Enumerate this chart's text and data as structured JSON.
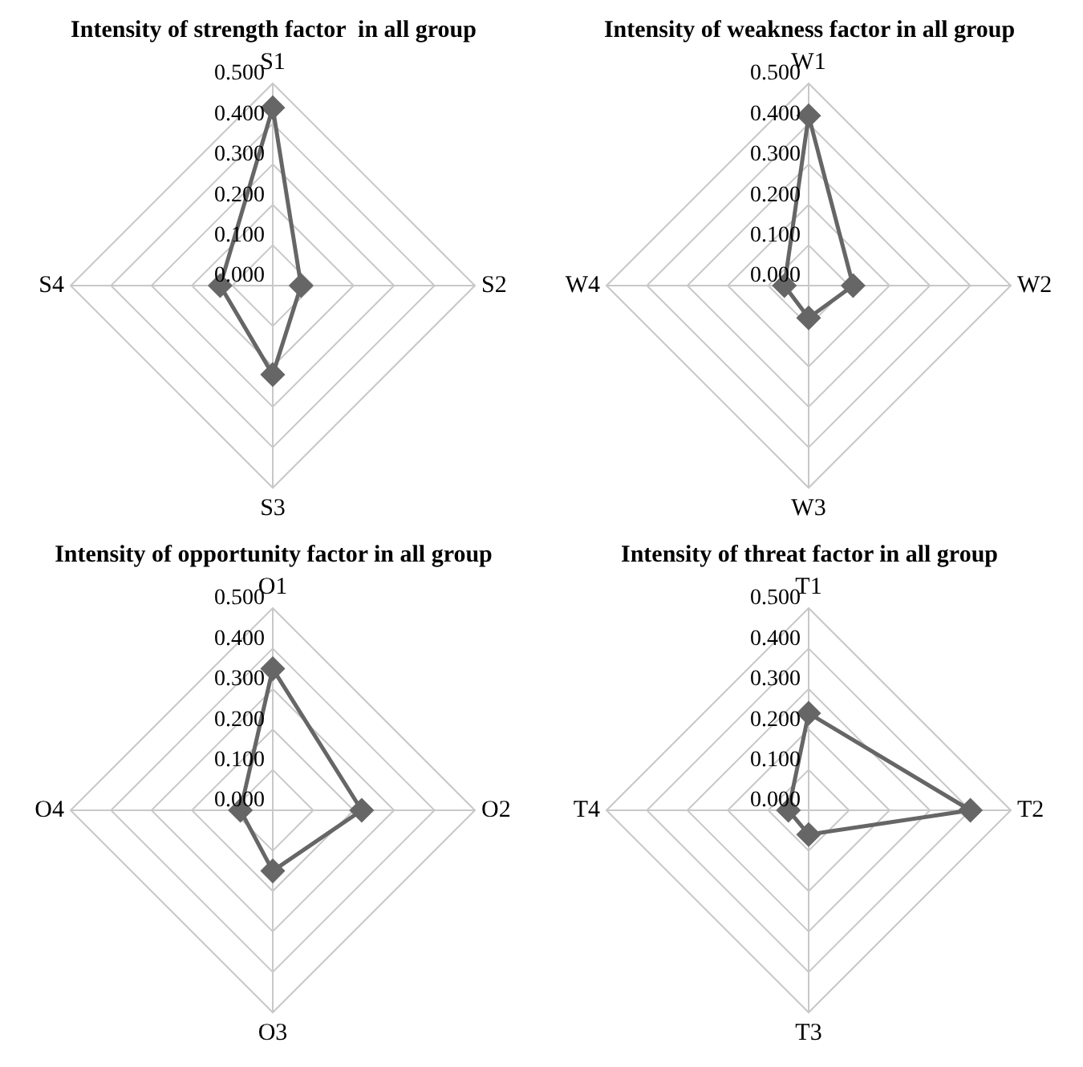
{
  "chart_data": [
    {
      "type": "radar",
      "title": "Intensity of strength factor  in all group",
      "categories": [
        "S1",
        "S2",
        "S3",
        "S4"
      ],
      "series": [
        {
          "color": "#666666",
          "values": [
            0.44,
            0.07,
            0.22,
            0.13
          ]
        }
      ],
      "ylim": [
        0,
        0.5
      ],
      "yticks": [
        {
          "value": 0,
          "label": "0.000"
        },
        {
          "value": 0.1,
          "label": "0.100"
        },
        {
          "value": 0.2,
          "label": "0.200"
        },
        {
          "value": 0.3,
          "label": "0.300"
        },
        {
          "value": 0.4,
          "label": "0.400"
        },
        {
          "value": 0.5,
          "label": "0.500"
        }
      ],
      "grid": true,
      "marker": "diamond"
    },
    {
      "type": "radar",
      "title": "Intensity of weakness factor in all group",
      "categories": [
        "W1",
        "W2",
        "W3",
        "W4"
      ],
      "series": [
        {
          "color": "#666666",
          "values": [
            0.42,
            0.11,
            0.08,
            0.06
          ]
        }
      ],
      "ylim": [
        0,
        0.5
      ],
      "yticks": [
        {
          "value": 0,
          "label": "0.000"
        },
        {
          "value": 0.1,
          "label": "0.100"
        },
        {
          "value": 0.2,
          "label": "0.200"
        },
        {
          "value": 0.3,
          "label": "0.300"
        },
        {
          "value": 0.4,
          "label": "0.400"
        },
        {
          "value": 0.5,
          "label": "0.500"
        }
      ],
      "grid": true,
      "marker": "diamond"
    },
    {
      "type": "radar",
      "title": "Intensity of opportunity factor in all group",
      "categories": [
        "O1",
        "O2",
        "O3",
        "O4"
      ],
      "series": [
        {
          "color": "#666666",
          "values": [
            0.35,
            0.22,
            0.15,
            0.08
          ]
        }
      ],
      "ylim": [
        0,
        0.5
      ],
      "yticks": [
        {
          "value": 0,
          "label": "0.000"
        },
        {
          "value": 0.1,
          "label": "0.100"
        },
        {
          "value": 0.2,
          "label": "0.200"
        },
        {
          "value": 0.3,
          "label": "0.300"
        },
        {
          "value": 0.4,
          "label": "0.400"
        },
        {
          "value": 0.5,
          "label": "0.500"
        }
      ],
      "grid": true,
      "marker": "diamond"
    },
    {
      "type": "radar",
      "title": "Intensity of threat factor in all group",
      "categories": [
        "T1",
        "T2",
        "T3",
        "T4"
      ],
      "series": [
        {
          "color": "#666666",
          "values": [
            0.24,
            0.4,
            0.06,
            0.05
          ]
        }
      ],
      "ylim": [
        0,
        0.5
      ],
      "yticks": [
        {
          "value": 0,
          "label": "0.000"
        },
        {
          "value": 0.1,
          "label": "0.100"
        },
        {
          "value": 0.2,
          "label": "0.200"
        },
        {
          "value": 0.3,
          "label": "0.300"
        },
        {
          "value": 0.4,
          "label": "0.400"
        },
        {
          "value": 0.5,
          "label": "0.500"
        }
      ],
      "grid": true,
      "marker": "diamond"
    }
  ]
}
